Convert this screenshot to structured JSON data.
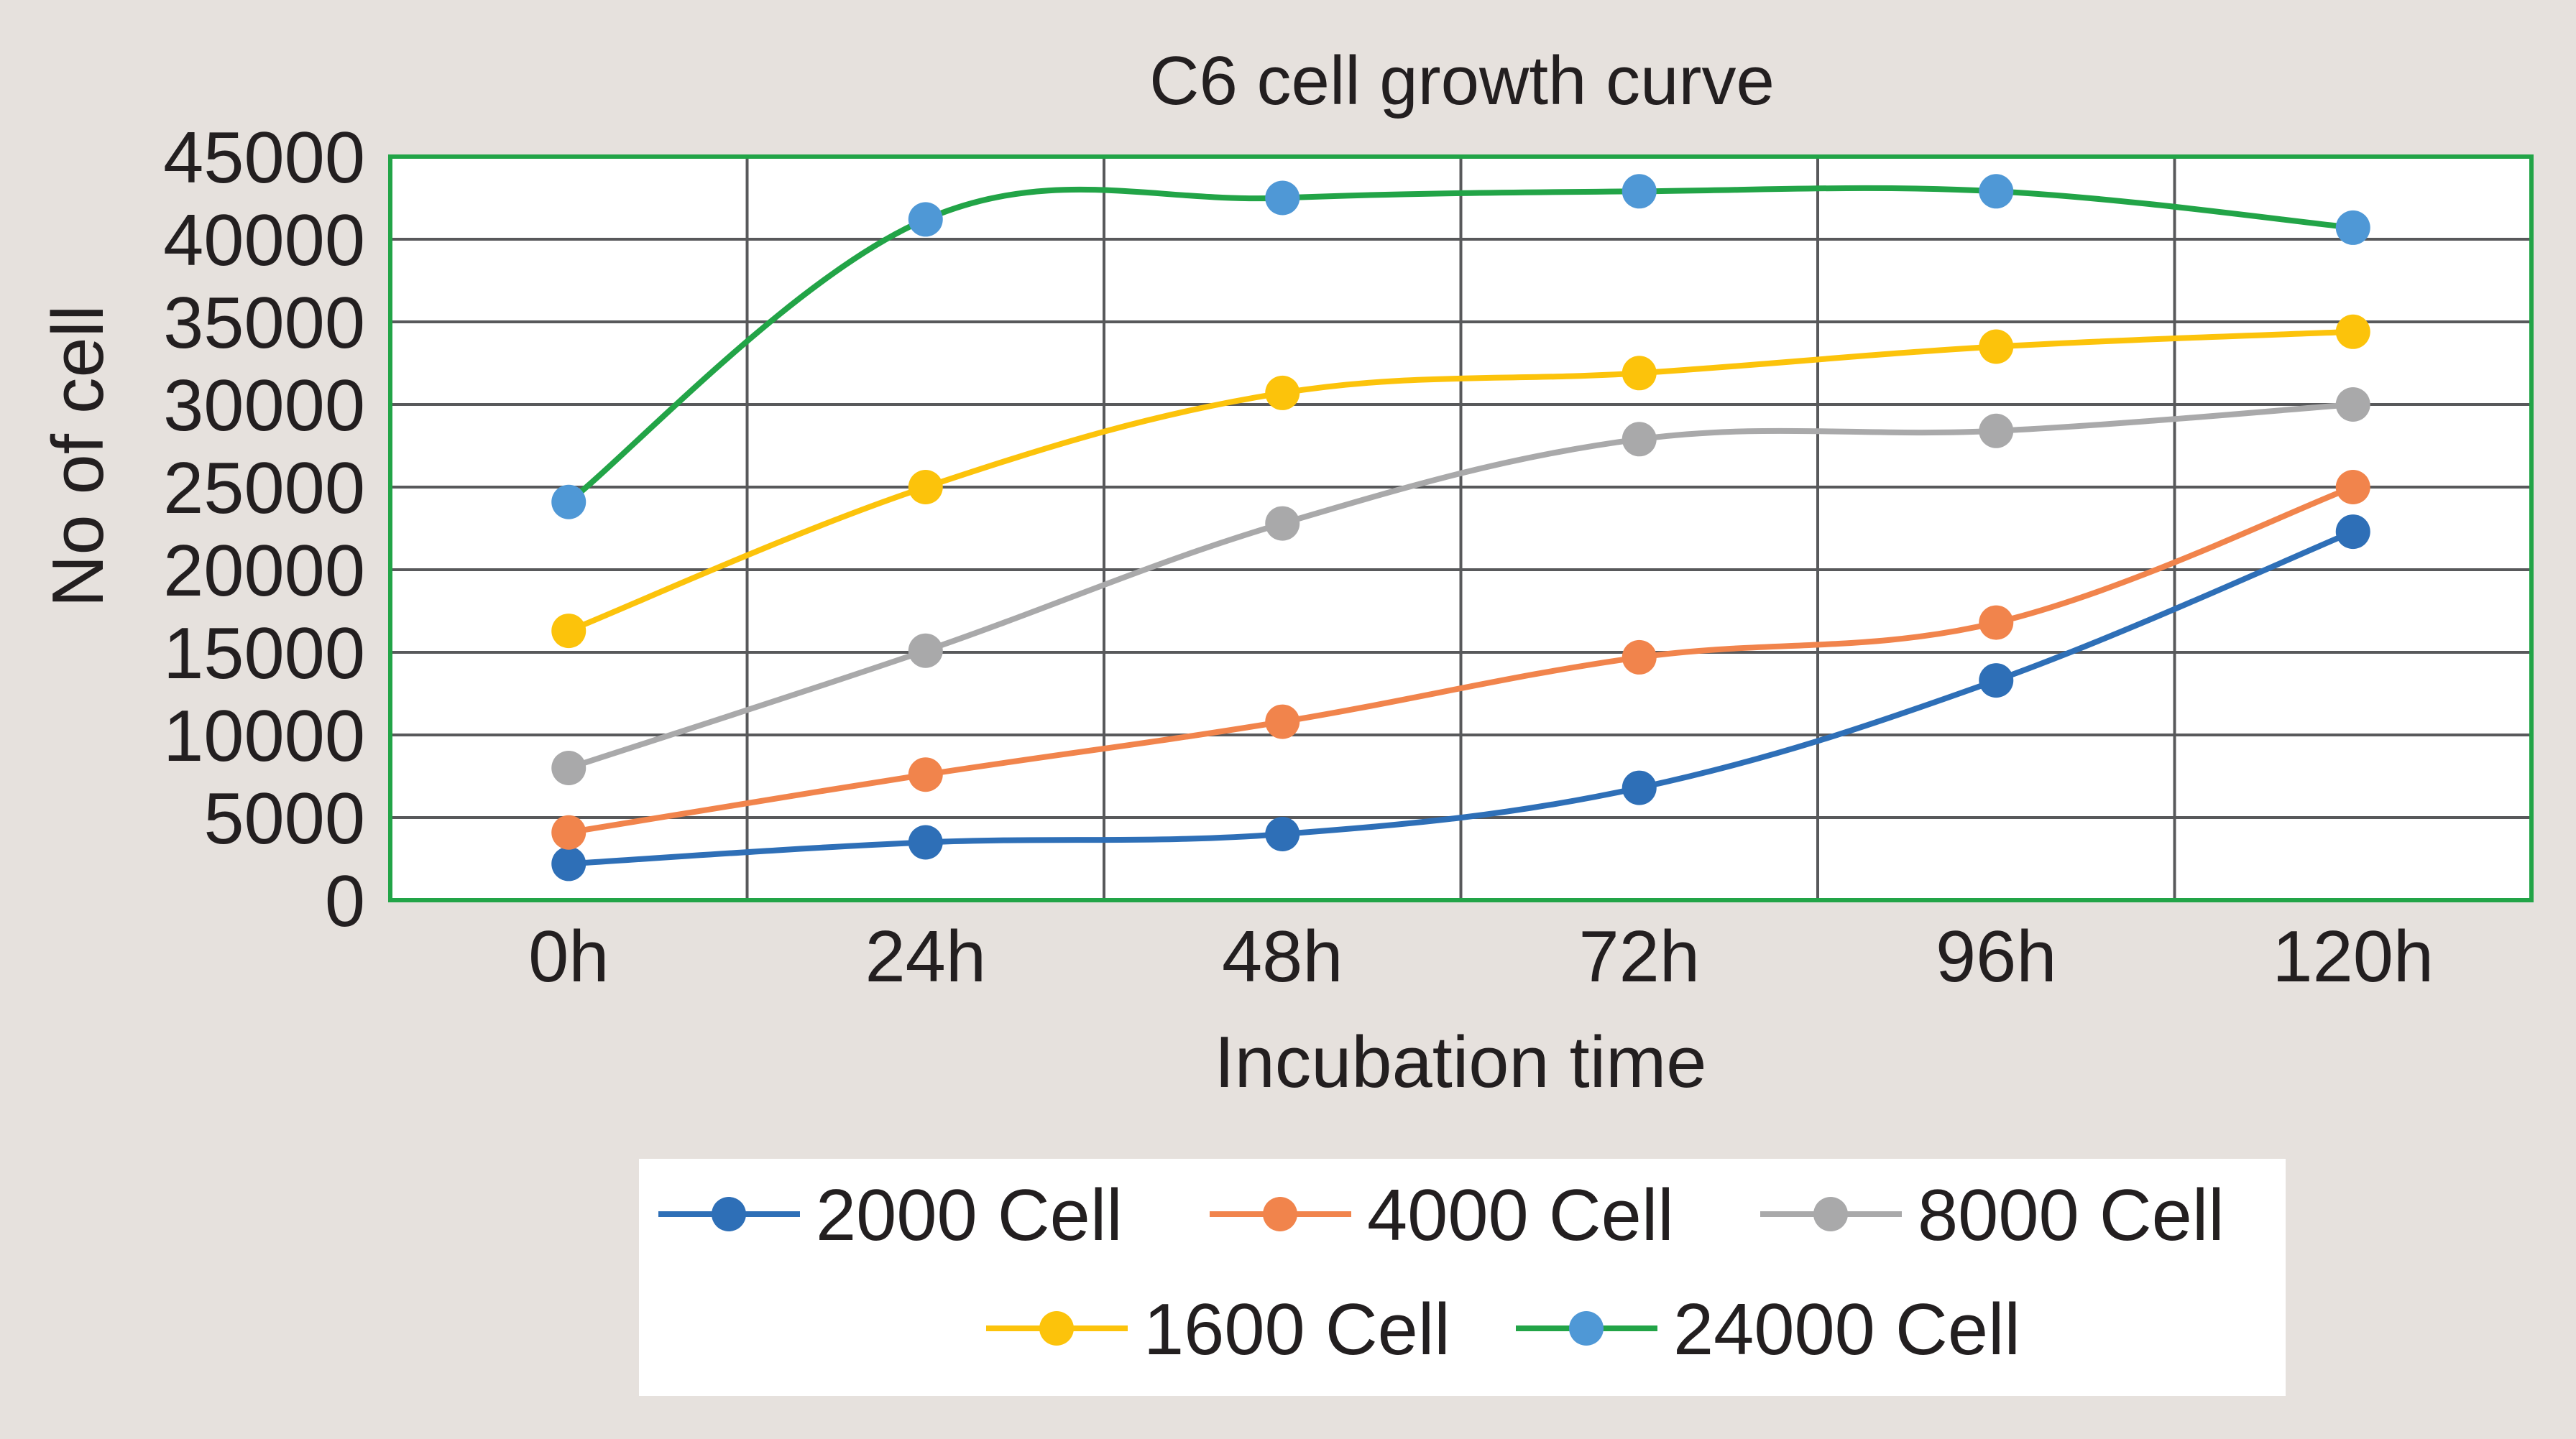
{
  "chart_data": {
    "type": "line",
    "title": "C6 cell growth curve",
    "xlabel": "Incubation time",
    "ylabel": "No of cell",
    "categories": [
      "0h",
      "24h",
      "48h",
      "72h",
      "96h",
      "120h"
    ],
    "ylim": [
      0,
      45000
    ],
    "yticks": [
      0,
      5000,
      10000,
      15000,
      20000,
      25000,
      30000,
      35000,
      40000,
      45000
    ],
    "grid": true,
    "smoothed": true,
    "legend_position": "bottom",
    "plot_border_color": "#22a447",
    "series": [
      {
        "name": "2000 Cell",
        "color": "#2e6fb7",
        "marker_color": "#2e6fb7",
        "values": [
          2200,
          3500,
          4000,
          6800,
          13300,
          22300
        ]
      },
      {
        "name": "4000 Cell",
        "color": "#f1844c",
        "marker_color": "#f1844c",
        "values": [
          4100,
          7600,
          10800,
          14700,
          16800,
          25000
        ]
      },
      {
        "name": "8000 Cell",
        "color": "#a9a9aa",
        "marker_color": "#a9a9aa",
        "values": [
          8000,
          15100,
          22800,
          27900,
          28400,
          30000
        ]
      },
      {
        "name": "1600 Cell",
        "color": "#fcc30b",
        "marker_color": "#fcc30b",
        "values": [
          16300,
          25000,
          30700,
          31900,
          33500,
          34400
        ]
      },
      {
        "name": "24000 Cell",
        "color": "#22a447",
        "marker_color": "#4f98d6",
        "values": [
          24100,
          41200,
          42500,
          42900,
          42900,
          40700
        ]
      }
    ]
  }
}
